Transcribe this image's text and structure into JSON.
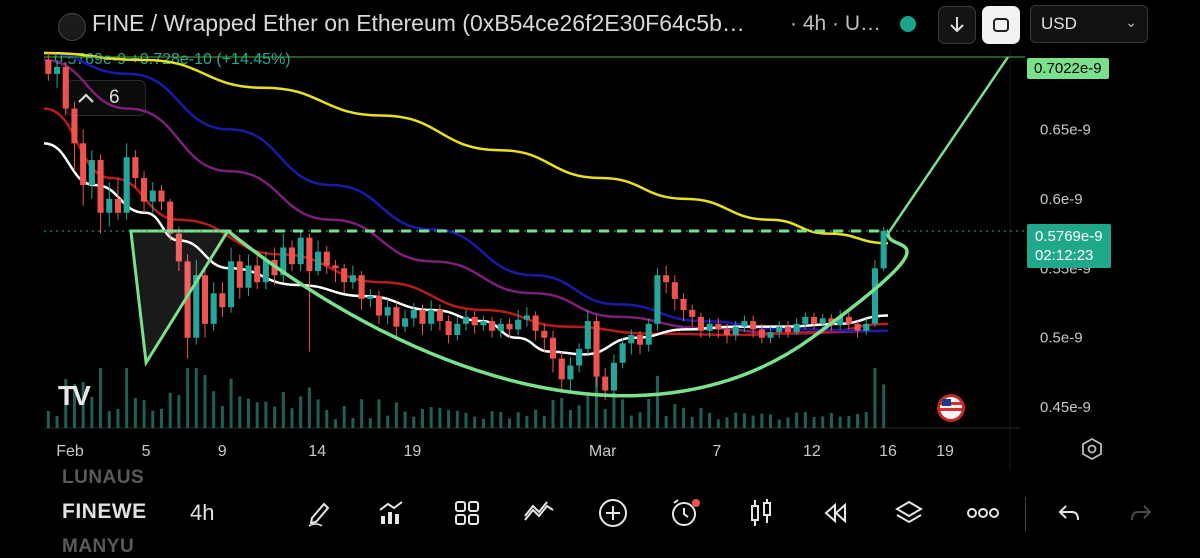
{
  "header": {
    "title": "FINE / Wrapped Ether on Ethereum (0xB54ce26f2E30F64c5b…",
    "suffix": "· 4h · U…",
    "currency": "USD"
  },
  "legend": {
    "price": "0.5769e-9",
    "change": "+0.728e-10 (+14.45%)",
    "indicator_count": "6"
  },
  "watermark": "TV",
  "chart_data": {
    "type": "candlestick",
    "x_ticks": [
      {
        "label": "Feb",
        "day": 1
      },
      {
        "label": "5",
        "day": 5
      },
      {
        "label": "9",
        "day": 9
      },
      {
        "label": "14",
        "day": 14
      },
      {
        "label": "19",
        "day": 19
      },
      {
        "label": "Mar",
        "day": 29
      },
      {
        "label": "7",
        "day": 35
      },
      {
        "label": "12",
        "day": 40
      },
      {
        "label": "16",
        "day": 44
      },
      {
        "label": "19",
        "day": 47
      }
    ],
    "y_ticks": [
      {
        "label": "0.65e-9",
        "value": 0.65
      },
      {
        "label": "0.6e-9",
        "value": 0.6
      },
      {
        "label": "0.55e-9",
        "value": 0.55
      },
      {
        "label": "0.5e-9",
        "value": 0.5
      },
      {
        "label": "0.45e-9",
        "value": 0.45
      }
    ],
    "ylim": [
      0.435,
      0.7
    ],
    "price_tags": [
      {
        "label": "0.7022e-9",
        "value": 0.7022
      },
      {
        "label": "0.5769e-9",
        "value": 0.5769,
        "countdown": "02:12:23"
      }
    ],
    "colors": {
      "up": "#26a69a",
      "down": "#ef5350",
      "pattern": "#7ae08c",
      "ma_white": "#ffffff",
      "ma_red": "#b71c1c",
      "ma_purple": "#7b1f7a",
      "ma_blue": "#1a1aa8",
      "ma_yellow": "#e9e21a"
    },
    "candles": [
      [
        0.7,
        0.69,
        0.705,
        0.685
      ],
      [
        0.69,
        0.695,
        0.7,
        0.68
      ],
      [
        0.695,
        0.665,
        0.698,
        0.66
      ],
      [
        0.665,
        0.64,
        0.67,
        0.62
      ],
      [
        0.64,
        0.61,
        0.65,
        0.595
      ],
      [
        0.61,
        0.628,
        0.635,
        0.6
      ],
      [
        0.628,
        0.59,
        0.632,
        0.575
      ],
      [
        0.59,
        0.6,
        0.612,
        0.58
      ],
      [
        0.6,
        0.59,
        0.615,
        0.585
      ],
      [
        0.59,
        0.63,
        0.64,
        0.585
      ],
      [
        0.63,
        0.615,
        0.635,
        0.608
      ],
      [
        0.615,
        0.598,
        0.62,
        0.59
      ],
      [
        0.598,
        0.606,
        0.612,
        0.59
      ],
      [
        0.606,
        0.598,
        0.61,
        0.592
      ],
      [
        0.598,
        0.575,
        0.6,
        0.57
      ],
      [
        0.575,
        0.555,
        0.58,
        0.548
      ],
      [
        0.555,
        0.5,
        0.56,
        0.485
      ],
      [
        0.5,
        0.545,
        0.556,
        0.495
      ],
      [
        0.545,
        0.51,
        0.55,
        0.5
      ],
      [
        0.51,
        0.532,
        0.54,
        0.505
      ],
      [
        0.532,
        0.522,
        0.54,
        0.515
      ],
      [
        0.522,
        0.555,
        0.565,
        0.518
      ],
      [
        0.555,
        0.536,
        0.56,
        0.528
      ],
      [
        0.536,
        0.552,
        0.56,
        0.53
      ],
      [
        0.552,
        0.54,
        0.56,
        0.535
      ],
      [
        0.54,
        0.556,
        0.562,
        0.535
      ],
      [
        0.556,
        0.545,
        0.565,
        0.538
      ],
      [
        0.545,
        0.565,
        0.575,
        0.54
      ],
      [
        0.565,
        0.553,
        0.57,
        0.548
      ],
      [
        0.553,
        0.572,
        0.578,
        0.548
      ],
      [
        0.572,
        0.548,
        0.575,
        0.49
      ],
      [
        0.548,
        0.562,
        0.57,
        0.545
      ],
      [
        0.562,
        0.552,
        0.566,
        0.546
      ],
      [
        0.552,
        0.55,
        0.556,
        0.54
      ],
      [
        0.55,
        0.54,
        0.553,
        0.532
      ],
      [
        0.54,
        0.545,
        0.552,
        0.535
      ],
      [
        0.545,
        0.528,
        0.548,
        0.52
      ],
      [
        0.528,
        0.53,
        0.535,
        0.522
      ],
      [
        0.53,
        0.516,
        0.534,
        0.51
      ],
      [
        0.516,
        0.522,
        0.528,
        0.51
      ],
      [
        0.522,
        0.508,
        0.526,
        0.5
      ],
      [
        0.508,
        0.514,
        0.52,
        0.504
      ],
      [
        0.514,
        0.52,
        0.525,
        0.508
      ],
      [
        0.52,
        0.51,
        0.524,
        0.502
      ],
      [
        0.51,
        0.52,
        0.527,
        0.505
      ],
      [
        0.52,
        0.512,
        0.524,
        0.505
      ],
      [
        0.512,
        0.502,
        0.516,
        0.496
      ],
      [
        0.502,
        0.51,
        0.515,
        0.498
      ],
      [
        0.51,
        0.515,
        0.52,
        0.505
      ],
      [
        0.515,
        0.509,
        0.519,
        0.503
      ],
      [
        0.509,
        0.512,
        0.516,
        0.505
      ],
      [
        0.512,
        0.505,
        0.515,
        0.5
      ],
      [
        0.505,
        0.51,
        0.514,
        0.5
      ],
      [
        0.51,
        0.506,
        0.514,
        0.5
      ],
      [
        0.506,
        0.513,
        0.52,
        0.502
      ],
      [
        0.513,
        0.516,
        0.522,
        0.508
      ],
      [
        0.516,
        0.505,
        0.519,
        0.498
      ],
      [
        0.505,
        0.5,
        0.51,
        0.49
      ],
      [
        0.5,
        0.485,
        0.505,
        0.475
      ],
      [
        0.485,
        0.47,
        0.49,
        0.462
      ],
      [
        0.47,
        0.48,
        0.486,
        0.46
      ],
      [
        0.48,
        0.492,
        0.496,
        0.475
      ],
      [
        0.492,
        0.512,
        0.52,
        0.488
      ],
      [
        0.512,
        0.472,
        0.516,
        0.465
      ],
      [
        0.472,
        0.462,
        0.478,
        0.455
      ],
      [
        0.462,
        0.482,
        0.488,
        0.458
      ],
      [
        0.482,
        0.496,
        0.5,
        0.478
      ],
      [
        0.496,
        0.502,
        0.506,
        0.488
      ],
      [
        0.502,
        0.495,
        0.505,
        0.488
      ],
      [
        0.495,
        0.51,
        0.514,
        0.49
      ],
      [
        0.51,
        0.545,
        0.55,
        0.505
      ],
      [
        0.545,
        0.54,
        0.552,
        0.532
      ],
      [
        0.54,
        0.528,
        0.545,
        0.52
      ],
      [
        0.528,
        0.52,
        0.532,
        0.512
      ],
      [
        0.52,
        0.515,
        0.524,
        0.508
      ],
      [
        0.515,
        0.505,
        0.518,
        0.5
      ],
      [
        0.505,
        0.51,
        0.514,
        0.5
      ],
      [
        0.51,
        0.506,
        0.514,
        0.5
      ],
      [
        0.506,
        0.502,
        0.51,
        0.496
      ],
      [
        0.502,
        0.508,
        0.512,
        0.498
      ],
      [
        0.508,
        0.512,
        0.516,
        0.504
      ],
      [
        0.512,
        0.506,
        0.516,
        0.5
      ],
      [
        0.506,
        0.5,
        0.51,
        0.496
      ],
      [
        0.5,
        0.504,
        0.508,
        0.496
      ],
      [
        0.504,
        0.508,
        0.512,
        0.5
      ],
      [
        0.508,
        0.504,
        0.512,
        0.5
      ],
      [
        0.504,
        0.51,
        0.514,
        0.502
      ],
      [
        0.51,
        0.515,
        0.518,
        0.506
      ],
      [
        0.515,
        0.51,
        0.518,
        0.506
      ],
      [
        0.51,
        0.514,
        0.517,
        0.506
      ],
      [
        0.514,
        0.509,
        0.517,
        0.505
      ],
      [
        0.509,
        0.515,
        0.52,
        0.506
      ],
      [
        0.515,
        0.51,
        0.518,
        0.506
      ],
      [
        0.51,
        0.505,
        0.512,
        0.5
      ],
      [
        0.505,
        0.51,
        0.514,
        0.502
      ],
      [
        0.51,
        0.55,
        0.556,
        0.508
      ],
      [
        0.55,
        0.5769,
        0.58,
        0.548
      ]
    ],
    "ma_series": {
      "white": [
        [
          0.0,
          0.64
        ],
        [
          0.06,
          0.61
        ],
        [
          0.12,
          0.59
        ],
        [
          0.16,
          0.57
        ],
        [
          0.22,
          0.55
        ],
        [
          0.3,
          0.538
        ],
        [
          0.38,
          0.53
        ],
        [
          0.46,
          0.52
        ],
        [
          0.52,
          0.512
        ],
        [
          0.56,
          0.5
        ],
        [
          0.6,
          0.49
        ],
        [
          0.64,
          0.488
        ],
        [
          0.7,
          0.5
        ],
        [
          0.76,
          0.506
        ],
        [
          0.82,
          0.508
        ],
        [
          0.88,
          0.508
        ],
        [
          0.94,
          0.51
        ],
        [
          1.0,
          0.516
        ]
      ],
      "red": [
        [
          0.0,
          0.665
        ],
        [
          0.08,
          0.615
        ],
        [
          0.16,
          0.585
        ],
        [
          0.28,
          0.56
        ],
        [
          0.4,
          0.54
        ],
        [
          0.52,
          0.52
        ],
        [
          0.62,
          0.508
        ],
        [
          0.72,
          0.503
        ],
        [
          0.82,
          0.502
        ],
        [
          0.92,
          0.504
        ],
        [
          1.0,
          0.51
        ]
      ],
      "purple": [
        [
          0.0,
          0.7
        ],
        [
          0.1,
          0.665
        ],
        [
          0.22,
          0.62
        ],
        [
          0.34,
          0.585
        ],
        [
          0.46,
          0.555
        ],
        [
          0.58,
          0.532
        ],
        [
          0.68,
          0.515
        ],
        [
          0.78,
          0.507
        ],
        [
          0.88,
          0.503
        ],
        [
          1.0,
          0.505
        ]
      ],
      "blue": [
        [
          0.0,
          0.705
        ],
        [
          0.1,
          0.69
        ],
        [
          0.22,
          0.65
        ],
        [
          0.34,
          0.61
        ],
        [
          0.46,
          0.578
        ],
        [
          0.58,
          0.545
        ],
        [
          0.68,
          0.524
        ],
        [
          0.78,
          0.512
        ],
        [
          0.88,
          0.506
        ],
        [
          1.0,
          0.505
        ]
      ],
      "yellow": [
        [
          0.0,
          0.705
        ],
        [
          0.12,
          0.7
        ],
        [
          0.26,
          0.68
        ],
        [
          0.4,
          0.66
        ],
        [
          0.54,
          0.635
        ],
        [
          0.66,
          0.615
        ],
        [
          0.76,
          0.6
        ],
        [
          0.86,
          0.585
        ],
        [
          0.93,
          0.575
        ],
        [
          1.0,
          0.568
        ]
      ]
    }
  },
  "bottom": {
    "symbols": [
      "LUNAUS",
      "FINEWE",
      "MANYU"
    ],
    "interval": "4h"
  }
}
